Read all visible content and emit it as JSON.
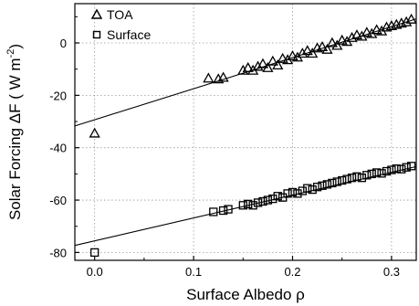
{
  "chart_data": {
    "type": "scatter",
    "title": "",
    "xlabel": "Surface Albedo ρ",
    "ylabel_prefix": "Solar Forcing  ΔF ( W m",
    "ylabel_sup": "-2",
    "ylabel_suffix": ")",
    "xlim": [
      -0.02,
      0.325
    ],
    "ylim": [
      -83,
      15
    ],
    "x_ticks": [
      0.0,
      0.1,
      0.2,
      0.3
    ],
    "x_tick_labels": [
      "0.0",
      "0.1",
      "0.2",
      "0.3"
    ],
    "y_ticks": [
      0,
      -20,
      -40,
      -60,
      -80
    ],
    "y_tick_labels": [
      "0",
      "-20",
      "-40",
      "-60",
      "-80"
    ],
    "grid": true,
    "legend": "top-left",
    "series": [
      {
        "name": "TOA",
        "marker": "triangle",
        "points": [
          [
            0.0,
            -34.5
          ],
          [
            0.115,
            -13.5
          ],
          [
            0.125,
            -13.8
          ],
          [
            0.13,
            -13.2
          ],
          [
            0.15,
            -10.5
          ],
          [
            0.155,
            -9.5
          ],
          [
            0.16,
            -10.5
          ],
          [
            0.165,
            -9.0
          ],
          [
            0.17,
            -8.0
          ],
          [
            0.175,
            -9.5
          ],
          [
            0.18,
            -7.0
          ],
          [
            0.185,
            -8.5
          ],
          [
            0.19,
            -6.0
          ],
          [
            0.195,
            -6.5
          ],
          [
            0.2,
            -5.0
          ],
          [
            0.205,
            -5.5
          ],
          [
            0.21,
            -4.0
          ],
          [
            0.215,
            -3.0
          ],
          [
            0.22,
            -4.0
          ],
          [
            0.225,
            -2.0
          ],
          [
            0.23,
            -1.5
          ],
          [
            0.235,
            -2.5
          ],
          [
            0.24,
            0.0
          ],
          [
            0.245,
            -1.0
          ],
          [
            0.25,
            1.0
          ],
          [
            0.255,
            0.5
          ],
          [
            0.26,
            2.0
          ],
          [
            0.265,
            3.0
          ],
          [
            0.27,
            2.5
          ],
          [
            0.275,
            4.0
          ],
          [
            0.28,
            3.5
          ],
          [
            0.285,
            5.0
          ],
          [
            0.29,
            4.5
          ],
          [
            0.295,
            6.0
          ],
          [
            0.3,
            6.5
          ],
          [
            0.305,
            7.0
          ],
          [
            0.31,
            7.5
          ],
          [
            0.315,
            8.0
          ],
          [
            0.32,
            9.0
          ]
        ]
      },
      {
        "name": "Surface",
        "marker": "square",
        "points": [
          [
            0.0,
            -80.0
          ],
          [
            0.12,
            -64.5
          ],
          [
            0.13,
            -64.0
          ],
          [
            0.135,
            -63.5
          ],
          [
            0.15,
            -62.0
          ],
          [
            0.155,
            -61.5
          ],
          [
            0.16,
            -62.0
          ],
          [
            0.165,
            -61.0
          ],
          [
            0.17,
            -60.5
          ],
          [
            0.175,
            -60.0
          ],
          [
            0.18,
            -59.5
          ],
          [
            0.185,
            -58.5
          ],
          [
            0.19,
            -59.0
          ],
          [
            0.195,
            -57.5
          ],
          [
            0.2,
            -57.0
          ],
          [
            0.205,
            -57.5
          ],
          [
            0.21,
            -56.5
          ],
          [
            0.215,
            -55.5
          ],
          [
            0.22,
            -56.0
          ],
          [
            0.225,
            -55.0
          ],
          [
            0.23,
            -54.5
          ],
          [
            0.235,
            -54.0
          ],
          [
            0.24,
            -53.5
          ],
          [
            0.245,
            -53.0
          ],
          [
            0.25,
            -52.5
          ],
          [
            0.255,
            -52.0
          ],
          [
            0.26,
            -51.5
          ],
          [
            0.265,
            -51.0
          ],
          [
            0.27,
            -51.5
          ],
          [
            0.275,
            -50.5
          ],
          [
            0.28,
            -50.0
          ],
          [
            0.285,
            -49.5
          ],
          [
            0.29,
            -49.8
          ],
          [
            0.295,
            -49.0
          ],
          [
            0.3,
            -48.5
          ],
          [
            0.305,
            -48.0
          ],
          [
            0.31,
            -48.2
          ],
          [
            0.315,
            -47.5
          ],
          [
            0.32,
            -47.0
          ]
        ]
      }
    ],
    "fit_lines": [
      {
        "series": "TOA",
        "x": [
          -0.02,
          0.325
        ],
        "y": [
          -31.7,
          9.2
        ]
      },
      {
        "series": "Surface",
        "x": [
          -0.02,
          0.325
        ],
        "y": [
          -77.3,
          -47.2
        ]
      }
    ]
  }
}
